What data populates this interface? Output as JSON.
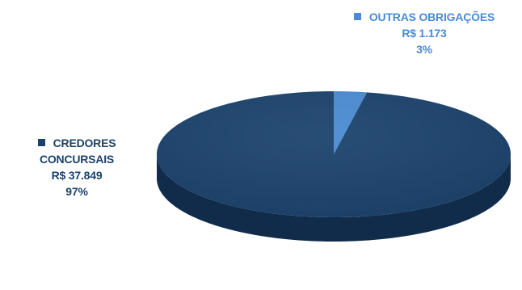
{
  "chart_data": {
    "type": "pie",
    "style": "3d",
    "title": "",
    "legend": "data-labels",
    "slices": [
      {
        "category_lines": [
          "CREDORES",
          "CONCURSAIS"
        ],
        "value": 37849,
        "value_label": "R$ 37.849",
        "percent_label": "97%",
        "color": "#1B426C",
        "side_color": "#112C4A"
      },
      {
        "category_lines": [
          "OUTRAS OBRIGAÇÕES"
        ],
        "value": 1173,
        "value_label": "R$ 1.173",
        "percent_label": "3%",
        "color": "#4A8BD3",
        "side_color": "#2F64A0"
      }
    ]
  }
}
